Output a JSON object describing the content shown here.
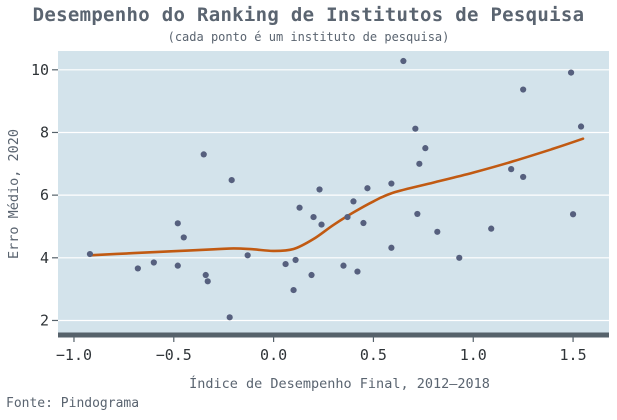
{
  "title": "Desempenho do Ranking de Institutos de Pesquisa",
  "subtitle": "(cada ponto é um instituto de pesquisa)",
  "source": "Fonte: Pindograma",
  "colors": {
    "panel": "#d3e3eb",
    "points": "#56607e",
    "trend": "#c15a12",
    "axis": "#56626b",
    "text": "#5a6470"
  },
  "chart_data": {
    "type": "scatter",
    "title": "Desempenho do Ranking de Institutos de Pesquisa",
    "subtitle": "(cada ponto é um instituto de pesquisa)",
    "xlabel": "Índice de Desempenho Final, 2012–2018",
    "ylabel": "Erro Médio, 2020",
    "xlim": [
      -1.08,
      1.68
    ],
    "ylim": [
      1.6,
      10.6
    ],
    "xticks": [
      -1.0,
      -0.5,
      0.0,
      0.5,
      1.0,
      1.5
    ],
    "xtick_labels": [
      "−1.0",
      "−0.5",
      "0.0",
      "0.5",
      "1.0",
      "1.5"
    ],
    "yticks": [
      2,
      4,
      6,
      8,
      10
    ],
    "ytick_labels": [
      "2",
      "4",
      "6",
      "8",
      "10"
    ],
    "grid": "horizontal",
    "points": [
      {
        "x": -0.92,
        "y": 4.12
      },
      {
        "x": -0.68,
        "y": 3.66
      },
      {
        "x": -0.6,
        "y": 3.85
      },
      {
        "x": -0.48,
        "y": 3.75
      },
      {
        "x": -0.48,
        "y": 5.1
      },
      {
        "x": -0.45,
        "y": 4.65
      },
      {
        "x": -0.35,
        "y": 7.3
      },
      {
        "x": -0.34,
        "y": 3.45
      },
      {
        "x": -0.33,
        "y": 3.25
      },
      {
        "x": -0.22,
        "y": 2.1
      },
      {
        "x": -0.21,
        "y": 6.48
      },
      {
        "x": -0.13,
        "y": 4.08
      },
      {
        "x": 0.06,
        "y": 3.8
      },
      {
        "x": 0.1,
        "y": 2.97
      },
      {
        "x": 0.11,
        "y": 3.93
      },
      {
        "x": 0.13,
        "y": 5.6
      },
      {
        "x": 0.19,
        "y": 3.45
      },
      {
        "x": 0.2,
        "y": 5.3
      },
      {
        "x": 0.23,
        "y": 6.18
      },
      {
        "x": 0.24,
        "y": 5.06
      },
      {
        "x": 0.35,
        "y": 3.75
      },
      {
        "x": 0.37,
        "y": 5.3
      },
      {
        "x": 0.4,
        "y": 5.8
      },
      {
        "x": 0.42,
        "y": 3.56
      },
      {
        "x": 0.45,
        "y": 5.11
      },
      {
        "x": 0.47,
        "y": 6.22
      },
      {
        "x": 0.59,
        "y": 6.37
      },
      {
        "x": 0.59,
        "y": 4.32
      },
      {
        "x": 0.65,
        "y": 10.28
      },
      {
        "x": 0.71,
        "y": 8.12
      },
      {
        "x": 0.72,
        "y": 5.4
      },
      {
        "x": 0.73,
        "y": 7.0
      },
      {
        "x": 0.76,
        "y": 7.5
      },
      {
        "x": 0.82,
        "y": 4.83
      },
      {
        "x": 0.93,
        "y": 4.0
      },
      {
        "x": 1.09,
        "y": 4.93
      },
      {
        "x": 1.19,
        "y": 6.83
      },
      {
        "x": 1.25,
        "y": 6.58
      },
      {
        "x": 1.25,
        "y": 9.37
      },
      {
        "x": 1.49,
        "y": 9.91
      },
      {
        "x": 1.5,
        "y": 5.39
      },
      {
        "x": 1.54,
        "y": 8.19
      }
    ],
    "trend_line": [
      {
        "x": -0.92,
        "y": 4.08
      },
      {
        "x": -0.7,
        "y": 4.15
      },
      {
        "x": -0.5,
        "y": 4.21
      },
      {
        "x": -0.3,
        "y": 4.27
      },
      {
        "x": -0.2,
        "y": 4.3
      },
      {
        "x": -0.1,
        "y": 4.27
      },
      {
        "x": 0.0,
        "y": 4.22
      },
      {
        "x": 0.1,
        "y": 4.28
      },
      {
        "x": 0.2,
        "y": 4.6
      },
      {
        "x": 0.3,
        "y": 5.05
      },
      {
        "x": 0.4,
        "y": 5.45
      },
      {
        "x": 0.5,
        "y": 5.8
      },
      {
        "x": 0.6,
        "y": 6.08
      },
      {
        "x": 0.8,
        "y": 6.4
      },
      {
        "x": 1.0,
        "y": 6.72
      },
      {
        "x": 1.2,
        "y": 7.08
      },
      {
        "x": 1.4,
        "y": 7.48
      },
      {
        "x": 1.55,
        "y": 7.8
      }
    ]
  }
}
